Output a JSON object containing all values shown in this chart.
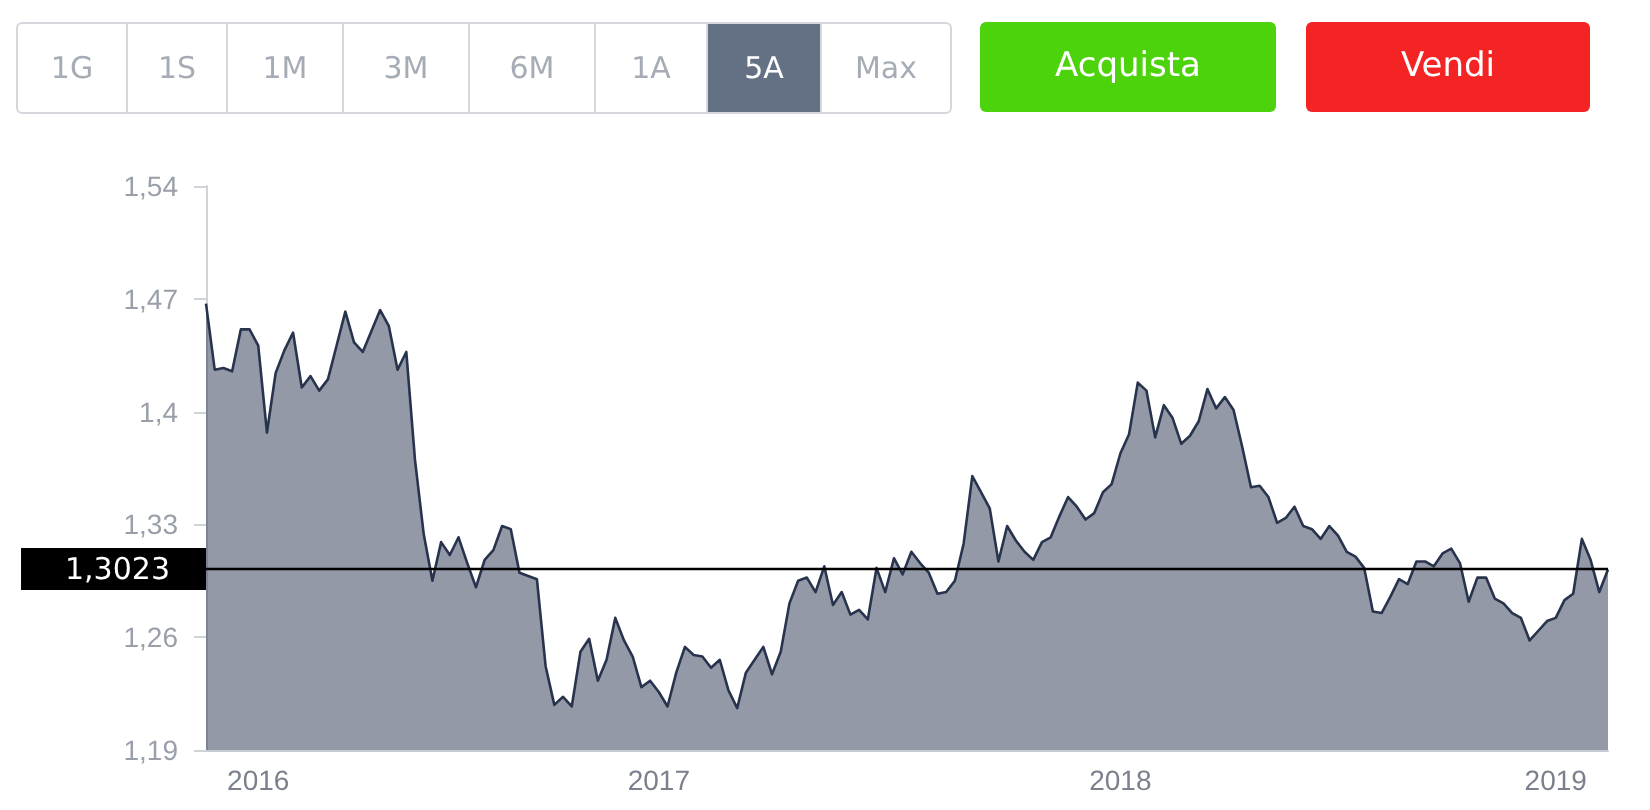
{
  "chart_data": {
    "type": "area",
    "annotations": [
      "1G",
      "1S",
      "1M",
      "3M",
      "6M",
      "1A",
      "5A",
      "Max",
      "Acquista",
      "Vendi"
    ],
    "categories": [
      null,
      null,
      null,
      null,
      null,
      null,
      "2016",
      null,
      null,
      null,
      null,
      null,
      null,
      null,
      null,
      null,
      null,
      null,
      null,
      null,
      null,
      null,
      null,
      null,
      null,
      null,
      null,
      null,
      null,
      null,
      null,
      null,
      null,
      null,
      null,
      null,
      null,
      null,
      null,
      null,
      null,
      null,
      null,
      null,
      null,
      null,
      null,
      null,
      null,
      null,
      null,
      null,
      "2017",
      null,
      null,
      null,
      null,
      null,
      null,
      null,
      null,
      null,
      null,
      null,
      null,
      null,
      null,
      null,
      null,
      null,
      null,
      null,
      null,
      null,
      null,
      null,
      null,
      null,
      null,
      null,
      null,
      null,
      null,
      null,
      null,
      null,
      null,
      null,
      null,
      null,
      null,
      null,
      null,
      null,
      null,
      null,
      null,
      null,
      null,
      null,
      null,
      null,
      null,
      null,
      null,
      "2018",
      null,
      null,
      null,
      null,
      null,
      null,
      null,
      null,
      null,
      null,
      null,
      null,
      null,
      null,
      null,
      null,
      null,
      null,
      null,
      null,
      null,
      null,
      null,
      null,
      null,
      null,
      null,
      null,
      null,
      null,
      null,
      null,
      null,
      null,
      null,
      null,
      null,
      null,
      null,
      null,
      null,
      null,
      null,
      null,
      null,
      null,
      null,
      null,
      null,
      "2019",
      null,
      null,
      null,
      null,
      null,
      null
    ],
    "series": [
      {
        "color": "#28344d",
        "values": [
          1.467,
          1.426,
          1.427,
          1.425,
          1.451,
          1.451,
          1.441,
          1.387,
          1.424,
          1.438,
          1.449,
          1.415,
          1.422,
          1.413,
          1.42,
          1.441,
          1.462,
          1.443,
          1.437,
          1.45,
          1.463,
          1.453,
          1.426,
          1.437,
          1.37,
          1.324,
          1.295,
          1.319,
          1.311,
          1.322,
          1.306,
          1.291,
          1.308,
          1.314,
          1.329,
          1.327,
          1.3,
          1.298,
          1.296,
          1.242,
          1.218,
          1.223,
          1.217,
          1.251,
          1.259,
          1.233,
          1.246,
          1.272,
          1.258,
          1.248,
          1.229,
          1.233,
          1.226,
          1.217,
          1.238,
          1.254,
          1.249,
          1.248,
          1.241,
          1.246,
          1.227,
          1.216,
          1.238,
          1.246,
          1.254,
          1.237,
          1.251,
          1.281,
          1.295,
          1.297,
          1.288,
          1.304,
          1.28,
          1.288,
          1.274,
          1.277,
          1.271,
          1.303,
          1.288,
          1.309,
          1.299,
          1.313,
          1.306,
          1.3,
          1.287,
          1.288,
          1.295,
          1.318,
          1.36,
          1.35,
          1.34,
          1.307,
          1.329,
          1.32,
          1.313,
          1.308,
          1.319,
          1.322,
          1.335,
          1.347,
          1.341,
          1.333,
          1.337,
          1.35,
          1.355,
          1.374,
          1.386,
          1.418,
          1.413,
          1.384,
          1.404,
          1.396,
          1.38,
          1.385,
          1.394,
          1.414,
          1.402,
          1.409,
          1.401,
          1.378,
          1.353,
          1.354,
          1.347,
          1.331,
          1.334,
          1.341,
          1.329,
          1.327,
          1.321,
          1.329,
          1.323,
          1.313,
          1.31,
          1.303,
          1.276,
          1.275,
          1.285,
          1.296,
          1.293,
          1.307,
          1.307,
          1.304,
          1.312,
          1.315,
          1.306,
          1.282,
          1.297,
          1.297,
          1.284,
          1.281,
          1.275,
          1.272,
          1.258,
          1.264,
          1.27,
          1.272,
          1.283,
          1.287,
          1.321,
          1.308,
          1.288,
          1.302
        ]
      }
    ],
    "ylim": [
      1.19,
      1.54
    ],
    "yticks": [
      {
        "value": 1.19,
        "label": "1,19"
      },
      {
        "value": 1.26,
        "label": "1,26"
      },
      {
        "value": 1.33,
        "label": "1,33"
      },
      {
        "value": 1.4,
        "label": "1,4"
      },
      {
        "value": 1.47,
        "label": "1,47"
      },
      {
        "value": 1.54,
        "label": "1,54"
      }
    ],
    "ref_lines": [
      {
        "axis": "y",
        "value": 1.3023,
        "label": "1,3023",
        "color": "#000000"
      }
    ],
    "grid": false,
    "marker": "none"
  }
}
